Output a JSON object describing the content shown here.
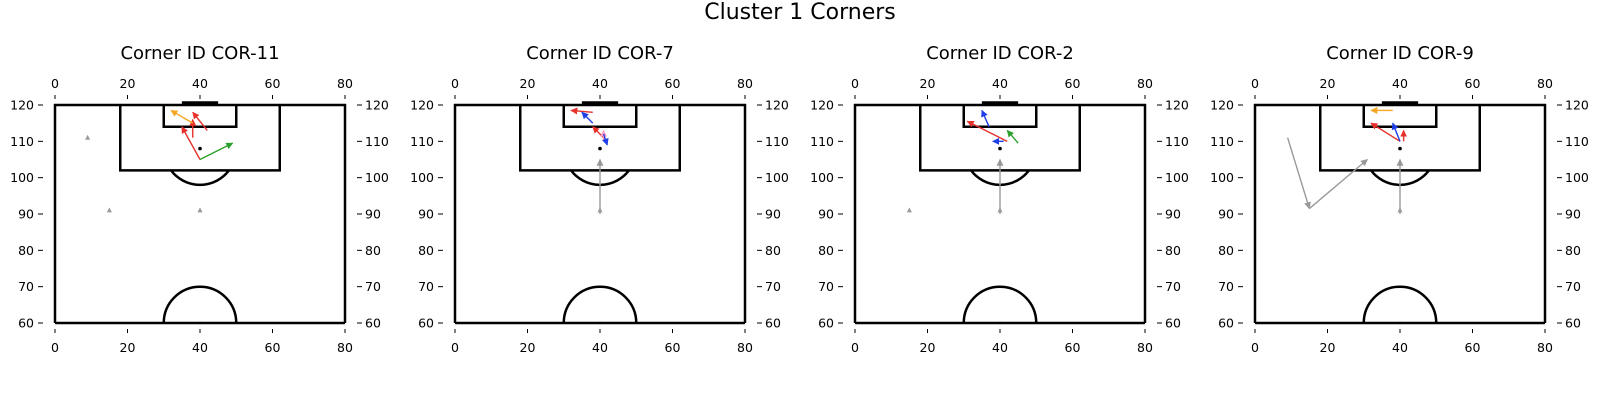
{
  "figure": {
    "title": "Cluster 1 Corners"
  },
  "colors": {
    "pitch": "#000000",
    "red": "#e8312b",
    "orange": "#f5a623",
    "green": "#2ca02c",
    "blue": "#1f3fe8",
    "pink": "#ff9ec4",
    "gray": "#999999"
  },
  "chart_data": [
    {
      "type": "scatter",
      "title": "Corner ID COR-11",
      "xlim": [
        0,
        80
      ],
      "ylim": [
        60,
        120
      ],
      "xticks": [
        0,
        20,
        40,
        60,
        80
      ],
      "yticks": [
        60,
        70,
        80,
        90,
        100,
        110,
        120
      ],
      "ball": [
        40,
        108
      ],
      "arrows": [
        {
          "color": "red",
          "from": [
            40,
            105
          ],
          "to": [
            35,
            114
          ]
        },
        {
          "color": "red",
          "from": [
            38,
            111
          ],
          "to": [
            38,
            116
          ]
        },
        {
          "color": "red",
          "from": [
            42,
            113
          ],
          "to": [
            38,
            118
          ]
        },
        {
          "color": "orange",
          "from": [
            38,
            115
          ],
          "to": [
            32,
            118.5
          ]
        },
        {
          "color": "green",
          "from": [
            40,
            105
          ],
          "to": [
            49,
            109.5
          ]
        }
      ],
      "markers": [
        {
          "color": "gray",
          "pos": [
            9,
            111
          ]
        },
        {
          "color": "gray",
          "pos": [
            15,
            91
          ]
        },
        {
          "color": "gray",
          "pos": [
            40,
            91
          ]
        }
      ]
    },
    {
      "type": "scatter",
      "title": "Corner ID COR-7",
      "xlim": [
        0,
        80
      ],
      "ylim": [
        60,
        120
      ],
      "xticks": [
        0,
        20,
        40,
        60,
        80
      ],
      "yticks": [
        60,
        70,
        80,
        90,
        100,
        110,
        120
      ],
      "ball": [
        40,
        108
      ],
      "arrows": [
        {
          "color": "red",
          "from": [
            38,
            118
          ],
          "to": [
            32,
            118.5
          ]
        },
        {
          "color": "blue",
          "from": [
            38,
            115
          ],
          "to": [
            35,
            118
          ]
        },
        {
          "color": "red",
          "from": [
            42,
            110
          ],
          "to": [
            38,
            114
          ]
        },
        {
          "color": "pink",
          "from": [
            41,
            110
          ],
          "to": [
            41,
            113
          ]
        },
        {
          "color": "blue",
          "from": [
            41,
            112
          ],
          "to": [
            42,
            109
          ]
        },
        {
          "color": "gray",
          "from": [
            40,
            90
          ],
          "to": [
            40,
            105
          ]
        }
      ],
      "markers": [
        {
          "color": "gray",
          "pos": [
            40,
            91
          ]
        }
      ]
    },
    {
      "type": "scatter",
      "title": "Corner ID COR-2",
      "xlim": [
        0,
        80
      ],
      "ylim": [
        60,
        120
      ],
      "xticks": [
        0,
        20,
        40,
        60,
        80
      ],
      "yticks": [
        60,
        70,
        80,
        90,
        100,
        110,
        120
      ],
      "ball": [
        40,
        108
      ],
      "arrows": [
        {
          "color": "red",
          "from": [
            42,
            110
          ],
          "to": [
            31,
            115.5
          ]
        },
        {
          "color": "blue",
          "from": [
            37,
            114
          ],
          "to": [
            35,
            118.5
          ]
        },
        {
          "color": "blue",
          "from": [
            41,
            110
          ],
          "to": [
            38,
            110
          ]
        },
        {
          "color": "green",
          "from": [
            45,
            109.5
          ],
          "to": [
            42,
            113
          ]
        },
        {
          "color": "gray",
          "from": [
            40,
            90
          ],
          "to": [
            40,
            105
          ]
        }
      ],
      "markers": [
        {
          "color": "gray",
          "pos": [
            15,
            91
          ]
        },
        {
          "color": "gray",
          "pos": [
            40,
            91
          ]
        }
      ]
    },
    {
      "type": "scatter",
      "title": "Corner ID COR-9",
      "xlim": [
        0,
        80
      ],
      "ylim": [
        60,
        120
      ],
      "xticks": [
        0,
        20,
        40,
        60,
        80
      ],
      "yticks": [
        60,
        70,
        80,
        90,
        100,
        110,
        120
      ],
      "ball": [
        40,
        108
      ],
      "arrows": [
        {
          "color": "orange",
          "from": [
            38,
            118.5
          ],
          "to": [
            32,
            118.5
          ]
        },
        {
          "color": "red",
          "from": [
            40,
            110
          ],
          "to": [
            32,
            115
          ]
        },
        {
          "color": "blue",
          "from": [
            40,
            110
          ],
          "to": [
            38,
            115
          ]
        },
        {
          "color": "red",
          "from": [
            41,
            110
          ],
          "to": [
            41,
            113
          ]
        },
        {
          "color": "gray",
          "from": [
            9,
            111
          ],
          "to": [
            15,
            91.5
          ]
        },
        {
          "color": "gray",
          "from": [
            15,
            91.5
          ],
          "to": [
            31,
            105
          ]
        },
        {
          "color": "gray",
          "from": [
            40,
            90
          ],
          "to": [
            40,
            105
          ]
        }
      ],
      "markers": [
        {
          "color": "gray",
          "pos": [
            40,
            91
          ]
        }
      ]
    }
  ]
}
